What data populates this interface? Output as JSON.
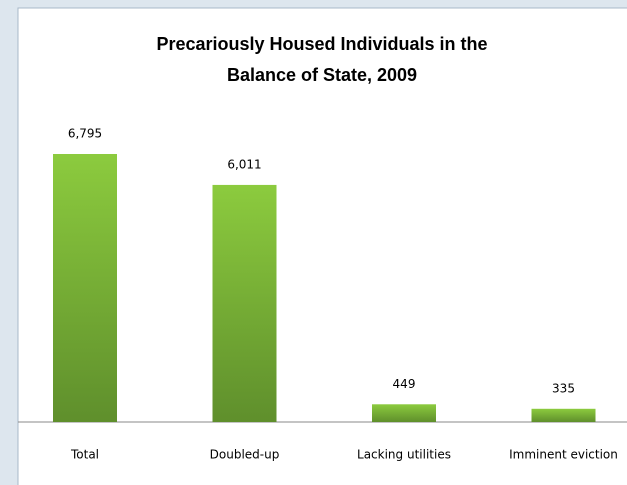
{
  "chart_data": {
    "type": "bar",
    "title": [
      "Precariously Housed Individuals in the",
      "Balance of State, 2009"
    ],
    "categories": [
      "Total",
      "Doubled-up",
      "Lacking utilities",
      "Imminent eviction"
    ],
    "values": [
      6795,
      6011,
      449,
      335
    ],
    "value_labels": [
      "6,795",
      "6,011",
      "449",
      "335"
    ],
    "color": "#7fb838"
  }
}
